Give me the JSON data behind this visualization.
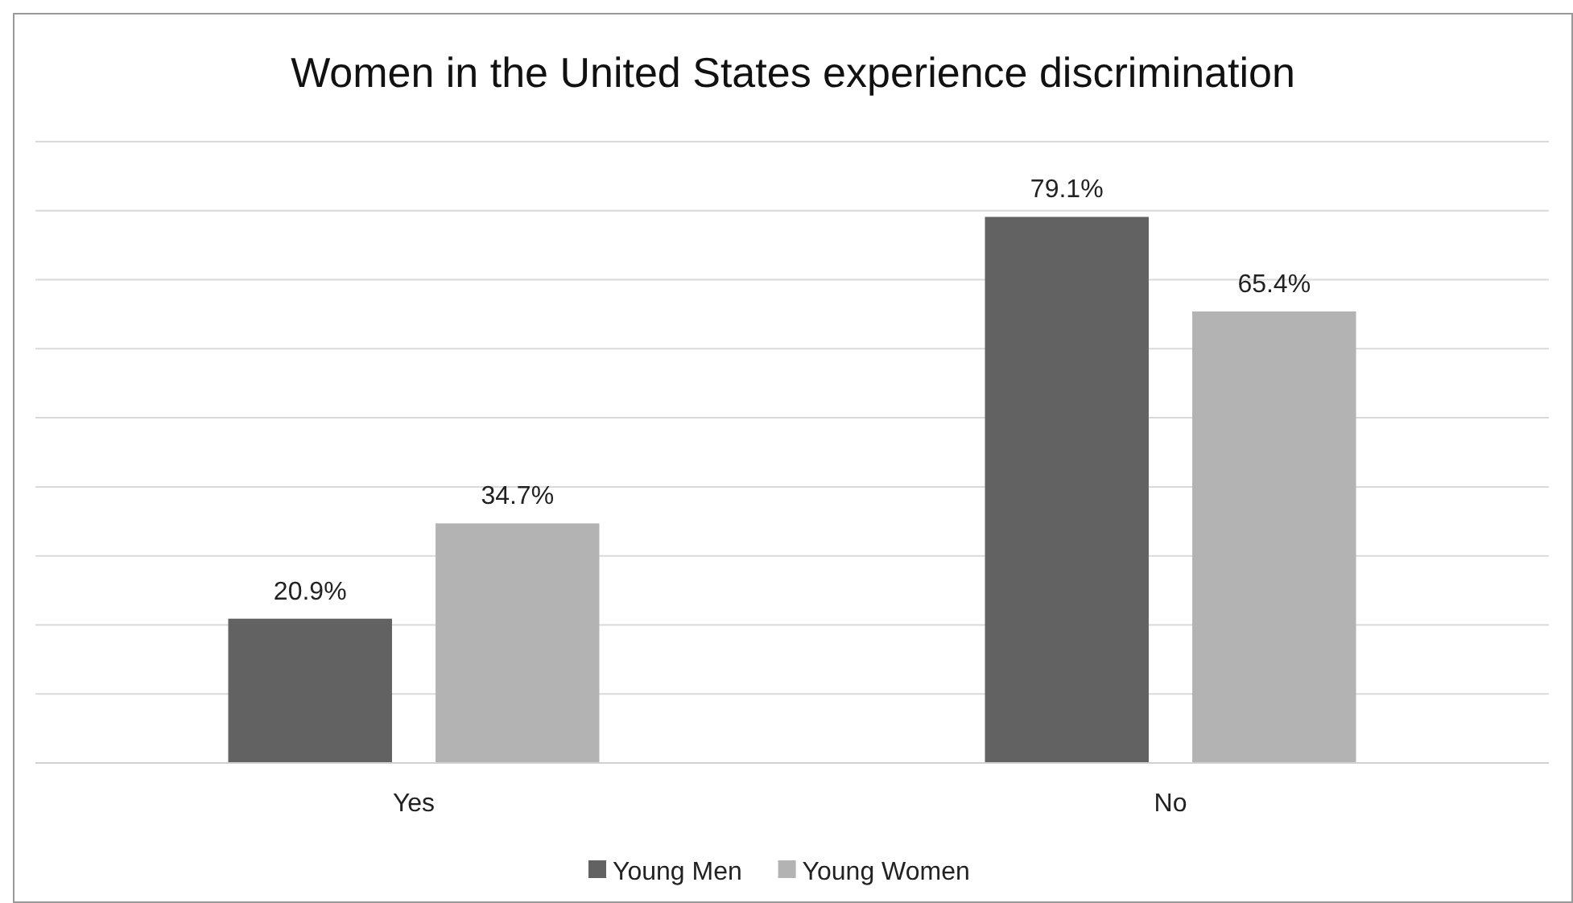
{
  "chart_data": {
    "type": "bar",
    "title": "Women in the United States experience discrimination",
    "categories": [
      "Yes",
      "No"
    ],
    "series": [
      {
        "name": "Young Men",
        "color": "#626262",
        "values": [
          20.9,
          79.1
        ],
        "value_labels": [
          "20.9%",
          "79.1%"
        ]
      },
      {
        "name": "Young Women",
        "color": "#b3b3b3",
        "values": [
          34.7,
          65.4
        ],
        "value_labels": [
          "34.7%",
          "65.4%"
        ]
      }
    ],
    "ylim": [
      0,
      90
    ],
    "yticks": [
      {
        "value": 0,
        "label": null
      },
      {
        "value": 10,
        "label": null
      },
      {
        "value": 20,
        "label": null
      },
      {
        "value": 30,
        "label": null
      },
      {
        "value": 40,
        "label": null
      },
      {
        "value": 50,
        "label": null
      },
      {
        "value": 60,
        "label": null
      },
      {
        "value": 70,
        "label": null
      },
      {
        "value": 80,
        "label": null
      },
      {
        "value": 90,
        "label": null
      }
    ],
    "tick_labels": "x",
    "grid": "y",
    "legend": "bottom"
  }
}
